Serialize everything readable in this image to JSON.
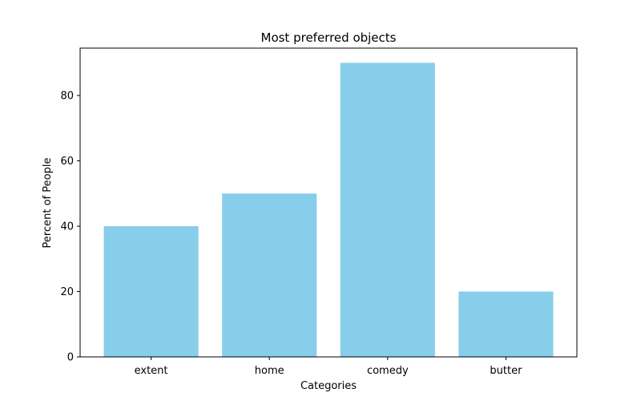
{
  "chart_data": {
    "type": "bar",
    "title": "Most preferred objects",
    "xlabel": "Categories",
    "ylabel": "Percent of People",
    "categories": [
      "extent",
      "home",
      "comedy",
      "butter"
    ],
    "values": [
      40,
      50,
      90,
      20
    ],
    "ylim": [
      0,
      94.5
    ],
    "yticks": [
      0,
      20,
      40,
      60,
      80
    ],
    "bar_color": "#87ceeb",
    "grid": false,
    "legend": "none"
  }
}
